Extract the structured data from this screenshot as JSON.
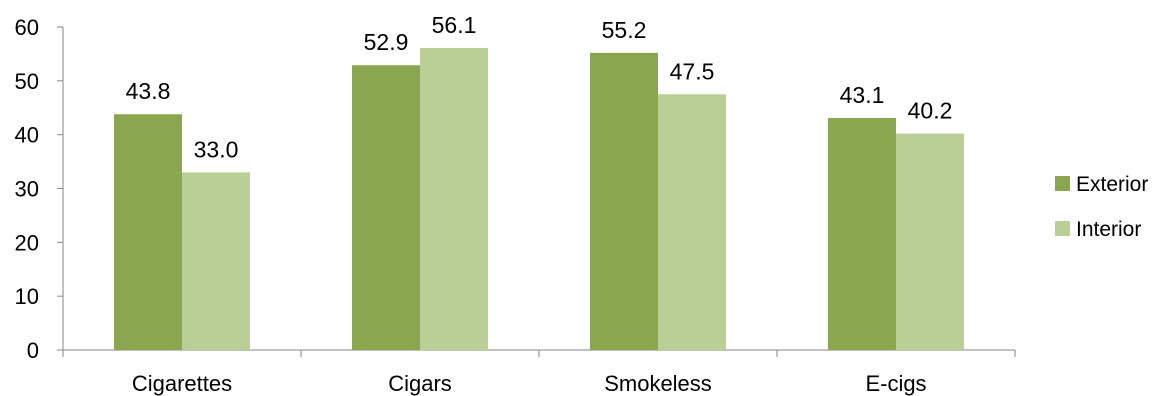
{
  "chart_data": {
    "type": "bar",
    "categories": [
      "Cigarettes",
      "Cigars",
      "Smokeless",
      "E-cigs"
    ],
    "series": [
      {
        "name": "Exterior",
        "values": [
          43.8,
          52.9,
          55.2,
          43.1
        ],
        "labels": [
          "43.8",
          "52.9",
          "55.2",
          "43.1"
        ],
        "color": "#8aa64f"
      },
      {
        "name": "Interior",
        "values": [
          33.0,
          56.1,
          47.5,
          40.2
        ],
        "labels": [
          "33.0",
          "56.1",
          "47.5",
          "40.2"
        ],
        "color": "#b9cf96"
      }
    ],
    "yticks": [
      "0",
      "10",
      "20",
      "30",
      "40",
      "50",
      "60"
    ],
    "ylim": [
      0,
      60
    ],
    "title": "",
    "xlabel": "",
    "ylabel": "",
    "grid": false,
    "legend": "right",
    "axis_color": "#868686"
  }
}
